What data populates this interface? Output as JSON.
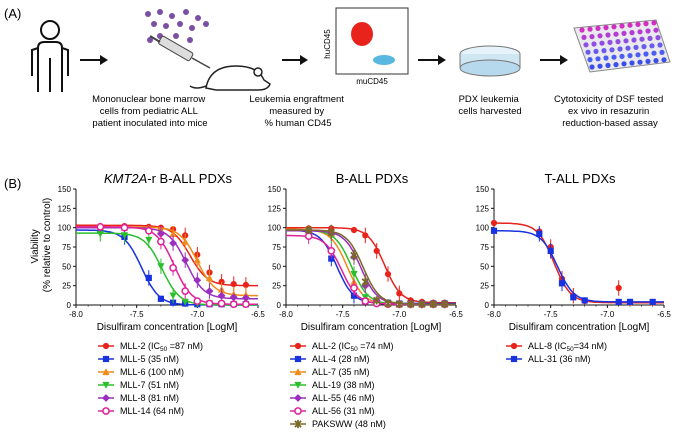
{
  "panel_a": {
    "label": "(A)",
    "steps": [
      {
        "lines": [
          "Mononuclear bone marrow",
          "cells from pediatric ALL",
          "patient inoculated into mice"
        ]
      },
      {
        "lines": [
          "Leukemia engraftment",
          "measured by",
          "% human CD45"
        ]
      },
      {
        "lines": [
          "PDX leukemia",
          "cells harvested"
        ]
      },
      {
        "lines": [
          "Cytotoxicity of DSF tested",
          "ex vivo in resazurin",
          "reduction-based assay"
        ]
      }
    ],
    "flow": {
      "ylabel": "huCD45",
      "xlabel": "muCD45"
    }
  },
  "panel_b": {
    "label": "(B)",
    "ylabel_line1": "Viability",
    "ylabel_line2": "(% relative to control)",
    "xlabel": "Disulfiram concentration [LogM]"
  },
  "chart_data": [
    {
      "type": "line",
      "title": "KMT2A-r B-ALL PDXs",
      "xlabel": "Disulfiram concentration [LogM]",
      "ylabel": "Viability (% relative to control)",
      "xlim": [
        -8.0,
        -6.5
      ],
      "ylim": [
        0,
        150
      ],
      "xticks": [
        "-8.0",
        "-7.5",
        "-7.0",
        "-6.5"
      ],
      "yticks": [
        "0",
        "25",
        "50",
        "75",
        "100",
        "125",
        "150"
      ],
      "x": [
        -7.8,
        -7.6,
        -7.4,
        -7.3,
        -7.2,
        -7.1,
        -7.0,
        -6.9,
        -6.8,
        -6.7,
        -6.6
      ],
      "series": [
        {
          "name": "MLL-2 (IC50 =87 nM)",
          "color": "#e8231c",
          "marker": "circle",
          "ic50_log": -7.06,
          "top": 103,
          "bottom": 25,
          "values": [
            102,
            102,
            101,
            100,
            98,
            90,
            65,
            42,
            30,
            27,
            26
          ]
        },
        {
          "name": "MLL-5 (35 nM)",
          "color": "#1832e0",
          "marker": "square",
          "ic50_log": -7.46,
          "top": 97,
          "bottom": 0,
          "values": [
            96,
            88,
            35,
            8,
            3,
            2,
            1,
            1,
            1,
            1,
            1
          ]
        },
        {
          "name": "MLL-6 (100 nM)",
          "color": "#f28a1a",
          "marker": "triangle",
          "ic50_log": -7.0,
          "top": 101,
          "bottom": 12,
          "values": [
            101,
            100,
            99,
            97,
            92,
            82,
            58,
            35,
            20,
            14,
            13
          ]
        },
        {
          "name": "MLL-7 (51 nM)",
          "color": "#2bbf2b",
          "marker": "triangle-down",
          "ic50_log": -7.29,
          "top": 93,
          "bottom": 0,
          "values": [
            92,
            90,
            84,
            50,
            12,
            4,
            2,
            2,
            1,
            1,
            1
          ]
        },
        {
          "name": "MLL-8 (81 nM)",
          "color": "#9a2fbf",
          "marker": "diamond",
          "ic50_log": -7.09,
          "top": 100,
          "bottom": 8,
          "values": [
            100,
            99,
            97,
            92,
            80,
            58,
            32,
            18,
            12,
            10,
            9
          ]
        },
        {
          "name": "MLL-14 (64 nM)",
          "color": "#e0209a",
          "marker": "circle-open",
          "ic50_log": -7.19,
          "top": 101,
          "bottom": 1,
          "values": [
            101,
            100,
            96,
            82,
            48,
            18,
            5,
            2,
            2,
            1,
            1
          ]
        }
      ]
    },
    {
      "type": "line",
      "title": "B-ALL PDXs",
      "xlabel": "Disulfiram concentration [LogM]",
      "xlim": [
        -8.0,
        -6.5
      ],
      "ylim": [
        0,
        150
      ],
      "xticks": [
        "-8.0",
        "-7.5",
        "-7.0",
        "-6.5"
      ],
      "x": [
        -7.8,
        -7.6,
        -7.4,
        -7.3,
        -7.2,
        -7.1,
        -7.0,
        -6.9,
        -6.8,
        -6.7,
        -6.6
      ],
      "series": [
        {
          "name": "ALL-2 (IC50 =74 nM)",
          "color": "#e8231c",
          "marker": "circle",
          "ic50_log": -7.13,
          "top": 100,
          "bottom": 3,
          "values": [
            99,
            99,
            97,
            90,
            70,
            40,
            15,
            6,
            4,
            3,
            3
          ]
        },
        {
          "name": "ALL-4 (28 nM)",
          "color": "#1832e0",
          "marker": "square",
          "ic50_log": -7.55,
          "top": 97,
          "bottom": 2,
          "values": [
            96,
            60,
            12,
            5,
            3,
            3,
            2,
            2,
            2,
            2,
            2
          ]
        },
        {
          "name": "ALL-7 (35 nM)",
          "color": "#f28a1a",
          "marker": "triangle",
          "ic50_log": -7.46,
          "top": 98,
          "bottom": 1,
          "values": [
            98,
            92,
            30,
            8,
            3,
            2,
            1,
            1,
            1,
            1,
            1
          ]
        },
        {
          "name": "ALL-19 (38 nM)",
          "color": "#2bbf2b",
          "marker": "triangle-down",
          "ic50_log": -7.42,
          "top": 97,
          "bottom": 1,
          "values": [
            96,
            90,
            40,
            10,
            3,
            2,
            1,
            1,
            1,
            1,
            1
          ]
        },
        {
          "name": "ALL-55 (46 nM)",
          "color": "#9a2fbf",
          "marker": "diamond",
          "ic50_log": -7.34,
          "top": 96,
          "bottom": 1,
          "values": [
            96,
            93,
            62,
            25,
            6,
            2,
            1,
            1,
            1,
            1,
            1
          ]
        },
        {
          "name": "ALL-56 (31 nM)",
          "color": "#e0209a",
          "marker": "circle-open",
          "ic50_log": -7.51,
          "top": 90,
          "bottom": 1,
          "values": [
            89,
            70,
            22,
            5,
            2,
            1,
            1,
            1,
            1,
            1,
            1
          ]
        },
        {
          "name": "PAKSWW (48 nM)",
          "color": "#7a6a2a",
          "marker": "star",
          "ic50_log": -7.32,
          "top": 97,
          "bottom": 1,
          "values": [
            97,
            94,
            64,
            30,
            6,
            2,
            1,
            1,
            1,
            1,
            1
          ]
        }
      ]
    },
    {
      "type": "line",
      "title": "T-ALL PDXs",
      "xlabel": "Disulfiram concentration [LogM]",
      "xlim": [
        -8.0,
        -6.5
      ],
      "ylim": [
        0,
        150
      ],
      "xticks": [
        "-8.0",
        "-7.5",
        "-7.0",
        "-6.5"
      ],
      "x": [
        -8.0,
        -7.6,
        -7.5,
        -7.4,
        -7.3,
        -7.2,
        -6.9,
        -6.8,
        -6.6
      ],
      "series": [
        {
          "name": "ALL-8 (IC50=34 nM)",
          "color": "#e8231c",
          "marker": "circle",
          "ic50_log": -7.47,
          "top": 106,
          "bottom": 3,
          "values": [
            106,
            95,
            75,
            34,
            12,
            5,
            22,
            3,
            3
          ]
        },
        {
          "name": "ALL-31 (36 nM)",
          "color": "#1832e0",
          "marker": "square",
          "ic50_log": -7.44,
          "top": 96,
          "bottom": 4,
          "values": [
            96,
            92,
            70,
            28,
            10,
            6,
            4,
            4,
            4
          ]
        }
      ]
    }
  ]
}
